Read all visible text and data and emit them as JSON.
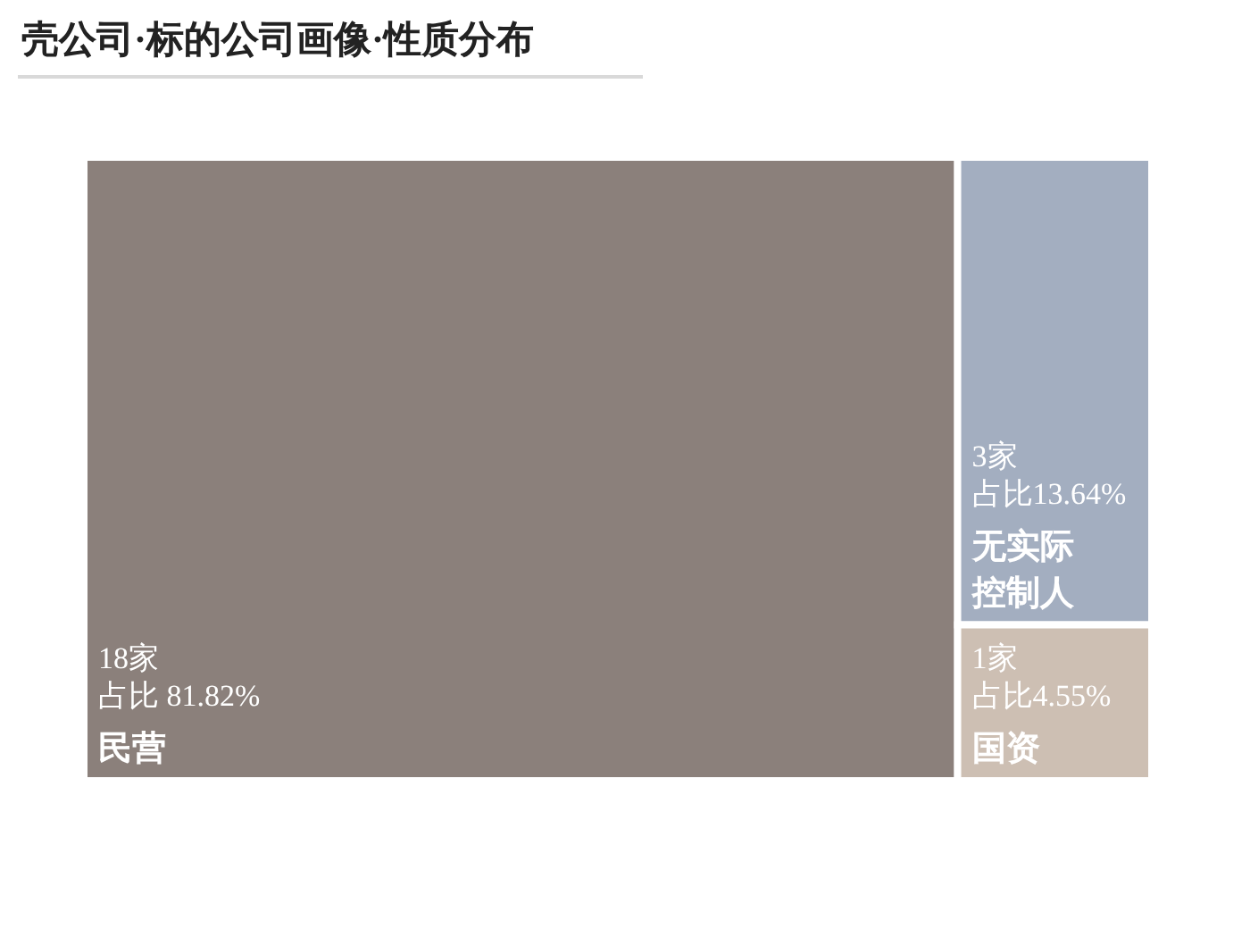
{
  "chart_data": {
    "type": "other",
    "title": "壳公司·标的公司画像·性质分布",
    "categories": [
      "民营",
      "无实际控制人",
      "国资"
    ],
    "values": [
      18,
      3,
      1
    ],
    "value_labels": [
      "18家",
      "3家",
      "1家"
    ],
    "annotations": [
      "占比 81.82%",
      "占比13.64%",
      "占比4.55%"
    ],
    "colors": [
      "#8b807b",
      "#a3aec0",
      "#cdbfb3"
    ]
  }
}
